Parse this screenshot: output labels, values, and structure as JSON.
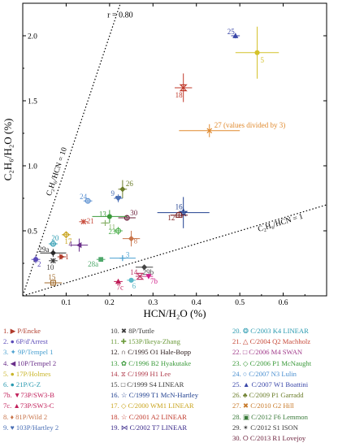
{
  "chart_data": {
    "type": "scatter",
    "title": "",
    "xlabel": "HCN/H₂O (%)",
    "ylabel": "C₂H₆/H₂O (%)",
    "xlim": [
      0,
      0.7
    ],
    "ylim": [
      0,
      2.25
    ],
    "x_ticks": [
      "0.1",
      "0.2",
      "0.3",
      "0.4",
      "0.5",
      "0.6"
    ],
    "y_ticks": [
      "0.5",
      "1.0",
      "1.5",
      "2.0"
    ],
    "correlation_label": "r = 0.80",
    "reference_lines": [
      {
        "label": "C₂H₆/HCN = 10",
        "ratio": 10
      },
      {
        "label": "C₂H₆/HCN = 1",
        "ratio": 1
      }
    ],
    "note_27": "27 (values divided by 3)",
    "points": [
      {
        "id": "25",
        "x": 0.49,
        "y": 2.0,
        "xerr": 0.01,
        "yerr": 0.02,
        "color": "#3a47a8",
        "marker": "triangle-up"
      },
      {
        "id": "5",
        "x": 0.54,
        "y": 1.87,
        "xerr": 0.05,
        "yerr": 0.2,
        "color": "#d4c22a",
        "marker": "circle"
      },
      {
        "id": "18",
        "x": 0.37,
        "y": 1.6,
        "xerr": 0.02,
        "yerr": 0.11,
        "color": "#c0392b",
        "marker": "hourglass"
      },
      {
        "id": "27",
        "x": 0.43,
        "y": 1.27,
        "xerr": 0.07,
        "yerr": 0.05,
        "color": "#e08a2e",
        "marker": "cross"
      },
      {
        "id": "26",
        "x": 0.23,
        "y": 0.82,
        "xerr": 0.01,
        "yerr": 0.07,
        "color": "#6b7d2a",
        "marker": "diamond"
      },
      {
        "id": "9",
        "x": 0.22,
        "y": 0.75,
        "xerr": 0.01,
        "yerr": 0.03,
        "color": "#4a6fb5",
        "marker": "heart"
      },
      {
        "id": "24",
        "x": 0.15,
        "y": 0.73,
        "xerr": 0.01,
        "yerr": 0.02,
        "color": "#5a8fd0",
        "marker": "circle-open"
      },
      {
        "id": "16",
        "x": 0.37,
        "y": 0.64,
        "xerr": 0.06,
        "yerr": 0.12,
        "color": "#1f3f8f",
        "marker": "star"
      },
      {
        "id": "12",
        "x": 0.36,
        "y": 0.62,
        "xerr": 0.02,
        "yerr": 0.02,
        "color": "#7a1f1f",
        "marker": "arch"
      },
      {
        "id": "30",
        "x": 0.24,
        "y": 0.6,
        "xerr": 0.02,
        "yerr": 0.02,
        "color": "#6a1f3a",
        "marker": "circle-open"
      },
      {
        "id": "13",
        "x": 0.2,
        "y": 0.61,
        "xerr": 0.04,
        "yerr": 0.05,
        "color": "#3a9a3a",
        "marker": "circle"
      },
      {
        "id": "21",
        "x": 0.14,
        "y": 0.57,
        "xerr": 0.01,
        "yerr": 0.02,
        "color": "#c74a3a",
        "marker": "cross"
      },
      {
        "id": "11",
        "x": 0.19,
        "y": 0.56,
        "xerr": 0.01,
        "yerr": 0.02,
        "color": "#8ab26a",
        "marker": "plus"
      },
      {
        "id": "23",
        "x": 0.22,
        "y": 0.5,
        "xerr": 0.01,
        "yerr": 0.03,
        "color": "#4fb04f",
        "marker": "circle-open"
      },
      {
        "id": "8",
        "x": 0.25,
        "y": 0.44,
        "xerr": 0.02,
        "yerr": 0.06,
        "color": "#c8744a",
        "marker": "diamond"
      },
      {
        "id": "17",
        "x": 0.1,
        "y": 0.47,
        "xerr": 0.01,
        "yerr": 0.02,
        "color": "#c9a41e",
        "marker": "diamond-open"
      },
      {
        "id": "20",
        "x": 0.07,
        "y": 0.4,
        "xerr": 0.01,
        "yerr": 0.01,
        "color": "#2a9ab0",
        "marker": "circle-open"
      },
      {
        "id": "4",
        "x": 0.13,
        "y": 0.39,
        "xerr": 0.02,
        "yerr": 0.05,
        "color": "#6a2f8a",
        "marker": "triangle-left"
      },
      {
        "id": "29a",
        "x": 0.07,
        "y": 0.33,
        "xerr": 0.03,
        "yerr": 0.03,
        "color": "#2a2a2a",
        "marker": "diamond"
      },
      {
        "id": "1",
        "x": 0.09,
        "y": 0.3,
        "xerr": 0.01,
        "yerr": 0.02,
        "color": "#b03a2a",
        "marker": "triangle-right"
      },
      {
        "id": "2",
        "x": 0.03,
        "y": 0.28,
        "xerr": 0.01,
        "yerr": 0.03,
        "color": "#5a4ab8",
        "marker": "circle"
      },
      {
        "id": "10",
        "x": 0.07,
        "y": 0.27,
        "xerr": 0.01,
        "yerr": 0.02,
        "color": "#3a3a3a",
        "marker": "x"
      },
      {
        "id": "3",
        "x": 0.23,
        "y": 0.29,
        "xerr": 0.03,
        "yerr": 0.02,
        "color": "#4aa0d0",
        "marker": "plus"
      },
      {
        "id": "28a",
        "x": 0.18,
        "y": 0.28,
        "xerr": 0.01,
        "yerr": 0.01,
        "color": "#4ea86a",
        "marker": "square"
      },
      {
        "id": "29b",
        "x": 0.28,
        "y": 0.22,
        "xerr": 0.02,
        "yerr": 0.02,
        "color": "#444444",
        "marker": "diamond"
      },
      {
        "id": "14",
        "x": 0.27,
        "y": 0.15,
        "xerr": 0.01,
        "yerr": 0.01,
        "color": "#c03a6a",
        "marker": "hourglass"
      },
      {
        "id": "7b",
        "x": 0.29,
        "y": 0.15,
        "xerr": 0.01,
        "yerr": 0.01,
        "color": "#d01f8a",
        "marker": "triangle-down"
      },
      {
        "id": "6",
        "x": 0.25,
        "y": 0.12,
        "xerr": 0.01,
        "yerr": 0.01,
        "color": "#5ab8c8",
        "marker": "circle"
      },
      {
        "id": "7c",
        "x": 0.22,
        "y": 0.11,
        "xerr": 0.01,
        "yerr": 0.01,
        "color": "#c01f5a",
        "marker": "triangle-up"
      },
      {
        "id": "15",
        "x": 0.07,
        "y": 0.1,
        "xerr": 0.02,
        "yerr": 0.01,
        "color": "#a06a2a",
        "marker": "square-open"
      }
    ],
    "legend": [
      {
        "label": "1. ▶ P/Encke",
        "color": "#b03a2a"
      },
      {
        "label": "2. ● 6P/d'Arrest",
        "color": "#5a4ab8"
      },
      {
        "label": "3. ✦ 9P/Tempel 1",
        "color": "#4aa0d0"
      },
      {
        "label": "4. ◀ 10P/Tempel 2",
        "color": "#6a2f8a"
      },
      {
        "label": "5. ● 17P/Holmes",
        "color": "#c9b52a"
      },
      {
        "label": "6. ● 21P/G-Z",
        "color": "#2a9ab0"
      },
      {
        "label": "7b. ▼73P/SW3-B",
        "color": "#c01f5a"
      },
      {
        "label": "7c. ▲73P/SW3-C",
        "color": "#c01f5a"
      },
      {
        "label": "8. ♦ 81P/Wild 2",
        "color": "#c8744a"
      },
      {
        "label": "9. ♥ 103P/Hartley 2",
        "color": "#4a6fb5"
      },
      {
        "label": "10. ✖ 8P/Tuttle",
        "color": "#3a3a3a"
      },
      {
        "label": "11. ✚ 153P/Ikeya-Zhang",
        "color": "#6b9a3a"
      },
      {
        "label": "12. ∩ C/1995 O1 Hale-Bopp",
        "color": "#2a1a1a"
      },
      {
        "label": "13. ✿ C/1996 B2 Hyakutake",
        "color": "#3a9a3a"
      },
      {
        "label": "14. ⧖ C/1999 H1 Lee",
        "color": "#b03a4a"
      },
      {
        "label": "15. □ C/1999 S4 LINEAR",
        "color": "#3a3a3a"
      },
      {
        "label": "16. ☆ C/1999 T1 McN-Hartley",
        "color": "#1f3f8f"
      },
      {
        "label": "17. ◇ C/2000 WM1 LINEAR",
        "color": "#c9a41e"
      },
      {
        "label": "18. ☆ C/2001 A2 LINEAR",
        "color": "#c0392b"
      },
      {
        "label": "19. ⋈ C/2002 T7 LINEAR",
        "color": "#3a2a8a"
      },
      {
        "label": "20. ❂ C/2003 K4 LINEAR",
        "color": "#2a9ab0"
      },
      {
        "label": "21. △ C/2004 Q2 Machholz",
        "color": "#c74a3a"
      },
      {
        "label": "22. □ C/2006 M4 SWAN",
        "color": "#a03a8a"
      },
      {
        "label": "23. ◇ C/2006 P1 McNaught",
        "color": "#3a9a3a"
      },
      {
        "label": "24. ○ C/2007 N3 Lulin",
        "color": "#4a8fd0"
      },
      {
        "label": "25. ▲ C/2007 W1 Boattini",
        "color": "#3a47a8"
      },
      {
        "label": "26. ♣ C/2009 P1 Garradd",
        "color": "#6b7d2a"
      },
      {
        "label": "27. ✖ C/2010 G2 Hill",
        "color": "#c87a2a"
      },
      {
        "label": "28. ▣ C/2012 F6 Lemmon",
        "color": "#3a7a3a"
      },
      {
        "label": "29. ✴ C/2012 S1 ISON",
        "color": "#3a3a3a"
      },
      {
        "label": "30. ⭘ C/2013 R1 Lovejoy",
        "color": "#6a1f3a"
      }
    ]
  }
}
